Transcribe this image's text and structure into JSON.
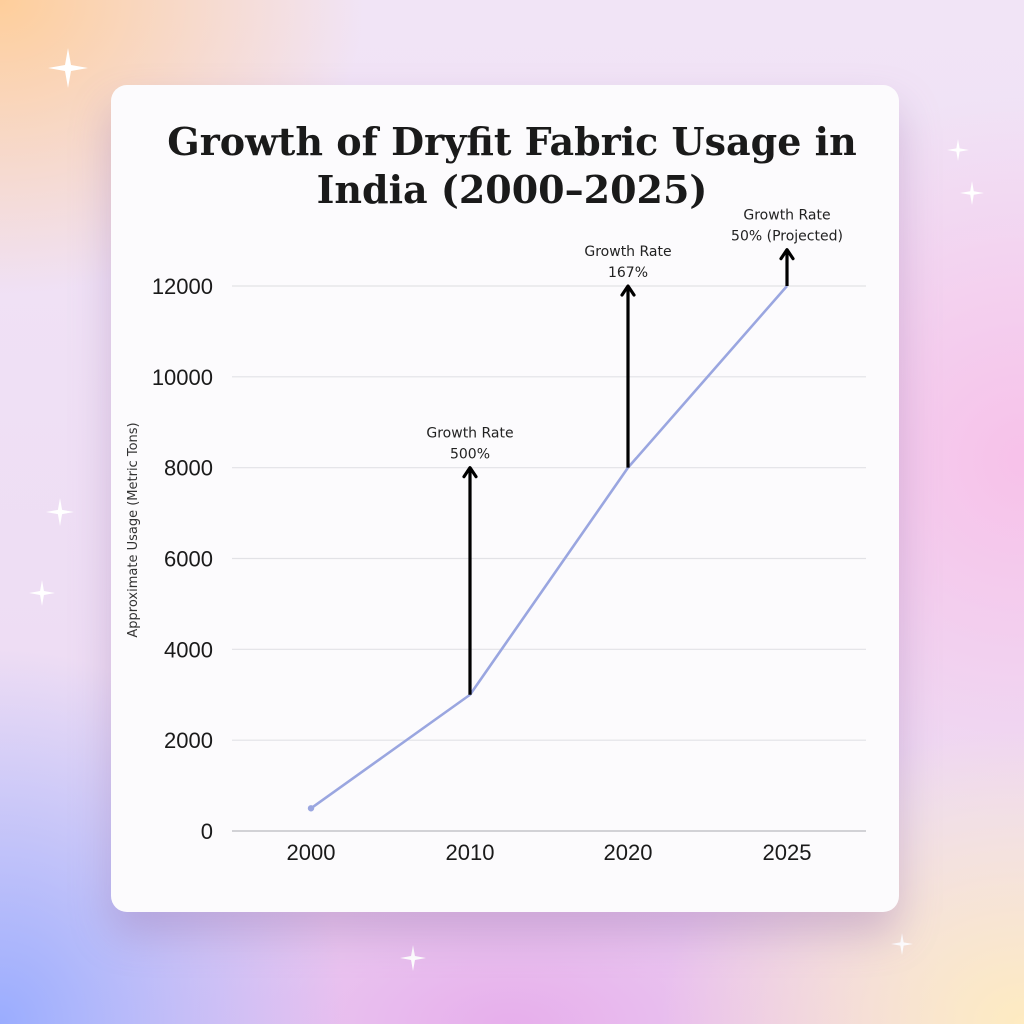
{
  "chart_data": {
    "type": "line",
    "title": "Growth of Dryfit Fabric Usage in India (2000–2025)",
    "title_lines": [
      "Growth of Dryfit Fabric Usage in",
      "India (2000–2025)"
    ],
    "xlabel": "",
    "ylabel": "Approximate Usage (Metric Tons)",
    "categories": [
      "2000",
      "2010",
      "2020",
      "2025"
    ],
    "series": [
      {
        "values": [
          500,
          3000,
          8000,
          12000
        ],
        "color": "#9aa6e0"
      }
    ],
    "ylim": [
      0,
      12000
    ],
    "yticks": [
      "0",
      "2000",
      "4000",
      "6000",
      "8000",
      "10000",
      "12000"
    ],
    "grid": true,
    "annotations": [
      {
        "category": "2010",
        "from": 3000,
        "to": 8000,
        "lines": [
          "Growth Rate",
          "500%"
        ]
      },
      {
        "category": "2020",
        "from": 8000,
        "to": 12000,
        "lines": [
          "Growth Rate",
          "167%"
        ]
      },
      {
        "category": "2025",
        "from": 12000,
        "to": 12800,
        "lines": [
          "Growth Rate",
          "50% (Projected)"
        ]
      }
    ]
  },
  "colors": {
    "line": "#9aa6e0",
    "arrow": "#000000",
    "grid": "#e2e2e6",
    "card": "#fcfbfd"
  }
}
